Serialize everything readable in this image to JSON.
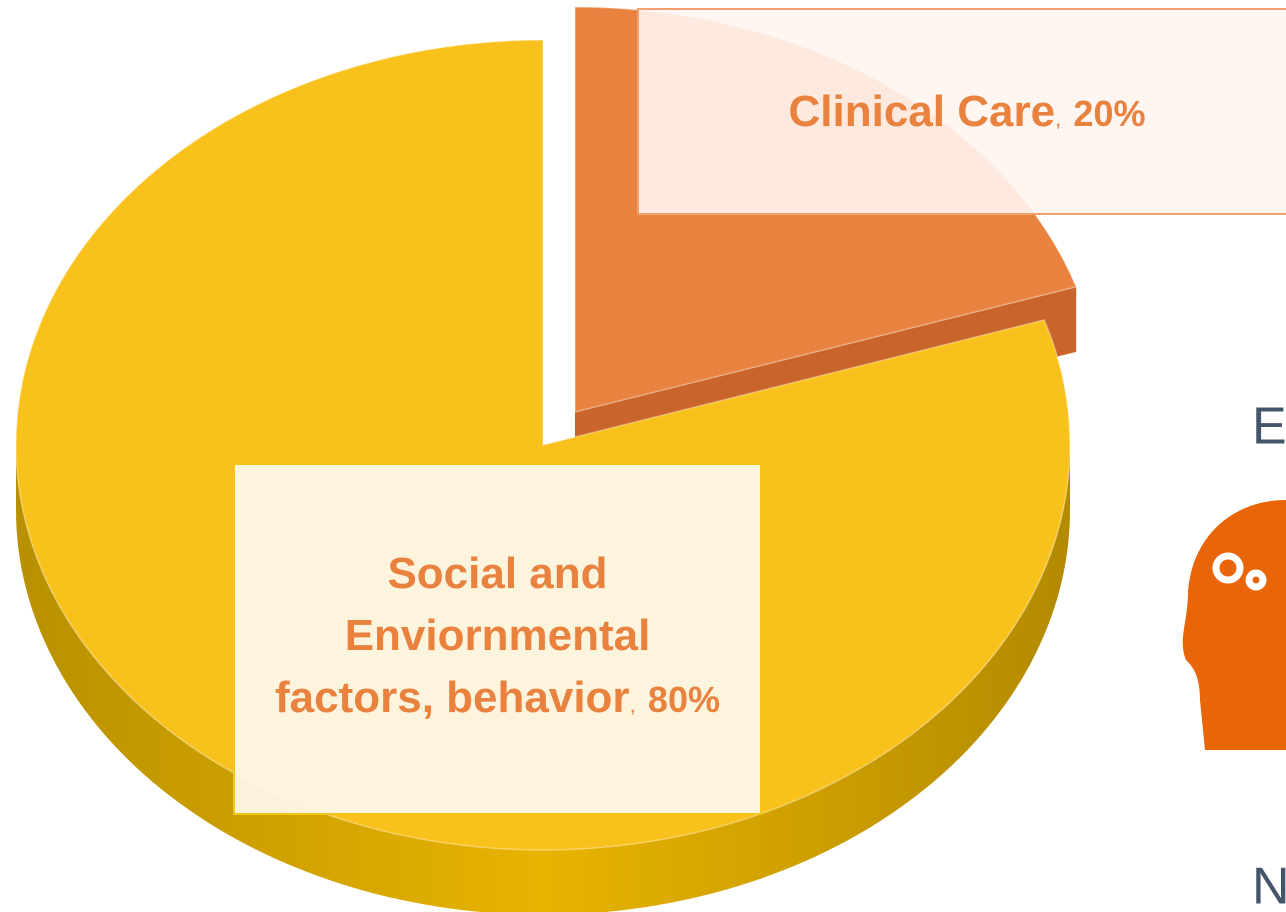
{
  "chart_data": {
    "type": "pie",
    "categories": [
      "Clinical Care",
      "Social and Enviornmental factors, behavior"
    ],
    "values": [
      20,
      80
    ],
    "value_labels": [
      "20%",
      "80%"
    ],
    "label_separator": ",",
    "colors": [
      "#e8823e",
      "#f9c11c"
    ],
    "annotations": [
      "E",
      "N"
    ]
  }
}
